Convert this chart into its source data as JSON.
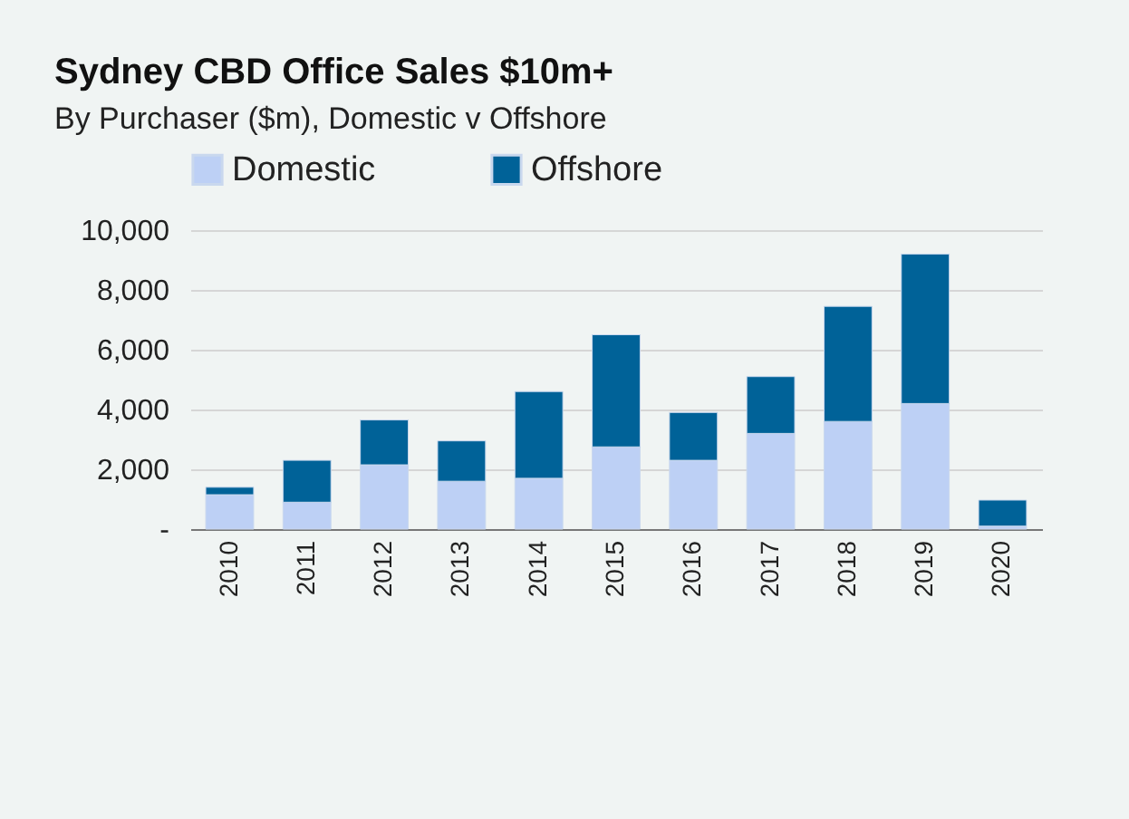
{
  "chart_data": {
    "type": "bar",
    "title": "Sydney CBD Office Sales $10m+",
    "subtitle": "By Purchaser ($m), Domestic v Offshore",
    "categories": [
      "2010",
      "2011",
      "2012",
      "2013",
      "2014",
      "2015",
      "2016",
      "2017",
      "2018",
      "2019",
      "2020"
    ],
    "series": [
      {
        "name": "Domestic",
        "color": "#bdd0f5",
        "values": [
          1150,
          900,
          2150,
          1600,
          1700,
          2750,
          2300,
          3200,
          3600,
          4200,
          100
        ]
      },
      {
        "name": "Offshore",
        "color": "#006298",
        "values": [
          250,
          1400,
          1500,
          1350,
          2900,
          3750,
          1600,
          1900,
          3850,
          5000,
          870
        ]
      }
    ],
    "stacked": true,
    "ylim": [
      0,
      10000
    ],
    "yticks": [
      {
        "value": 0,
        "label": "-"
      },
      {
        "value": 2000,
        "label": "2,000"
      },
      {
        "value": 4000,
        "label": "4,000"
      },
      {
        "value": 6000,
        "label": "6,000"
      },
      {
        "value": 8000,
        "label": "8,000"
      },
      {
        "value": 10000,
        "label": "10,000"
      }
    ],
    "grid": "y",
    "legend": "top"
  }
}
